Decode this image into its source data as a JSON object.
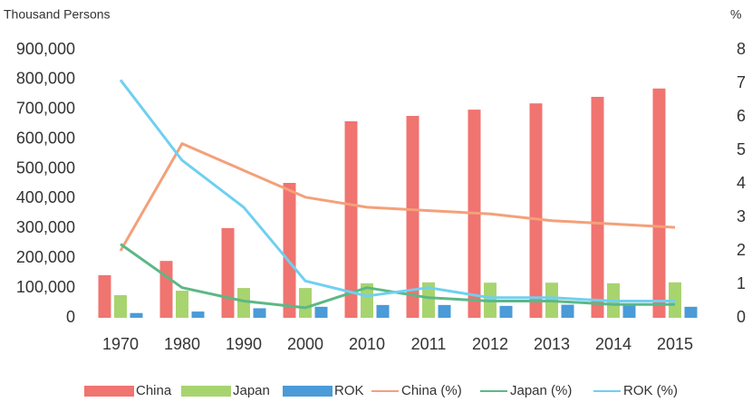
{
  "chart_data": {
    "type": "bar",
    "y_label": "Thousand Persons",
    "y2_label": "%",
    "categories": [
      "1970",
      "1980",
      "1990",
      "2000",
      "2010",
      "2011",
      "2012",
      "2013",
      "2014",
      "2015"
    ],
    "series": [
      {
        "name": "China",
        "type": "bar",
        "color": "#f07470",
        "values": [
          143000,
          191000,
          301000,
          453000,
          660000,
          678000,
          699000,
          720000,
          742000,
          770000
        ]
      },
      {
        "name": "Japan",
        "type": "bar",
        "color": "#a8d46f",
        "values": [
          76000,
          91000,
          100000,
          100000,
          116000,
          119000,
          118000,
          118000,
          116000,
          119000
        ]
      },
      {
        "name": "ROK",
        "type": "bar",
        "color": "#4a9bd8",
        "values": [
          16000,
          21000,
          32000,
          37000,
          43000,
          43000,
          40000,
          44000,
          42000,
          37000
        ]
      },
      {
        "name": "China (%)",
        "type": "line",
        "axis": "y2",
        "color": "#f4a07a",
        "values": [
          2.0,
          5.2,
          4.4,
          3.6,
          3.3,
          3.2,
          3.1,
          2.9,
          2.8,
          2.7
        ]
      },
      {
        "name": "Japan (%)",
        "type": "line",
        "axis": "y2",
        "color": "#5cb885",
        "values": [
          2.2,
          0.9,
          0.5,
          0.3,
          0.9,
          0.6,
          0.5,
          0.5,
          0.4,
          0.4
        ]
      },
      {
        "name": "ROK (%)",
        "type": "line",
        "axis": "y2",
        "color": "#6fd0f0",
        "values": [
          7.1,
          4.7,
          3.3,
          1.1,
          0.65,
          0.9,
          0.6,
          0.6,
          0.5,
          0.5
        ]
      }
    ],
    "ylim": [
      0,
      900000
    ],
    "yticks": [
      0,
      {
        "value": 100000,
        "label": "100,000"
      },
      {
        "value": 200000,
        "label": "200,000"
      },
      {
        "value": 300000,
        "label": "300,000"
      },
      {
        "value": 400000,
        "label": "400,000"
      },
      {
        "value": 500000,
        "label": "500,000"
      },
      {
        "value": 600000,
        "label": "600,000"
      },
      {
        "value": 700000,
        "label": "700,000"
      },
      {
        "value": 800000,
        "label": "800,000"
      },
      {
        "value": 900000,
        "label": "900,000"
      }
    ],
    "y2lim": [
      0,
      8
    ],
    "y2ticks": [
      0,
      1,
      2,
      3,
      4,
      5,
      6,
      7,
      8
    ],
    "grid": false,
    "legend": "bottom"
  }
}
